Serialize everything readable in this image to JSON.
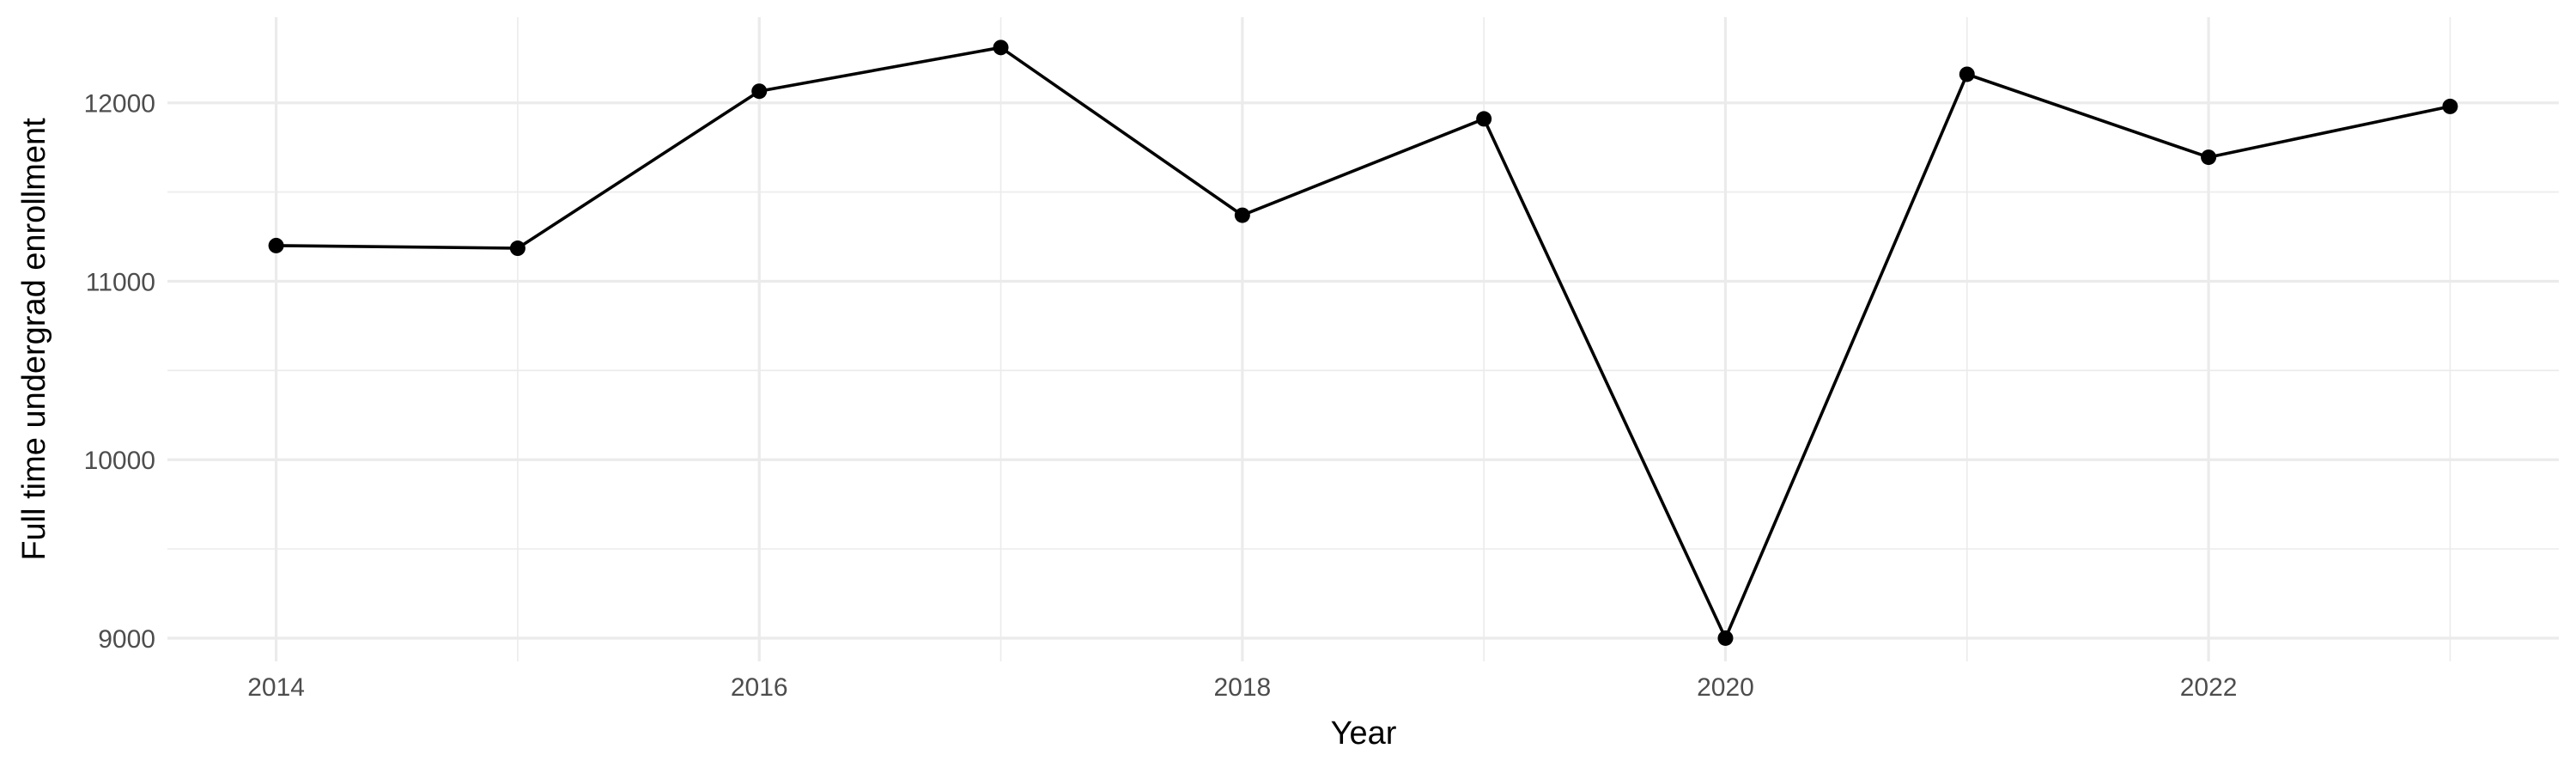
{
  "chart_data": {
    "type": "line",
    "xlabel": "Year",
    "ylabel": "Full time undergrad enrollment",
    "x": [
      2014,
      2015,
      2016,
      2017,
      2018,
      2019,
      2020,
      2021,
      2022,
      2023
    ],
    "series": [
      {
        "values": [
          11200,
          11185,
          12065,
          12310,
          11370,
          11910,
          9000,
          12160,
          11695,
          11980
        ]
      }
    ],
    "xlim": [
      2013.55,
      2023.45
    ],
    "ylim": [
      8870,
      12480
    ],
    "x_ticks": [
      2014,
      2016,
      2018,
      2020,
      2022
    ],
    "y_ticks": [
      9000,
      10000,
      11000,
      12000
    ],
    "grid": true,
    "legend": "none",
    "colors": {
      "line": "#000000",
      "grid": "#ebebeb",
      "tick_text": "#4d4d4d",
      "background": "#ffffff"
    }
  }
}
